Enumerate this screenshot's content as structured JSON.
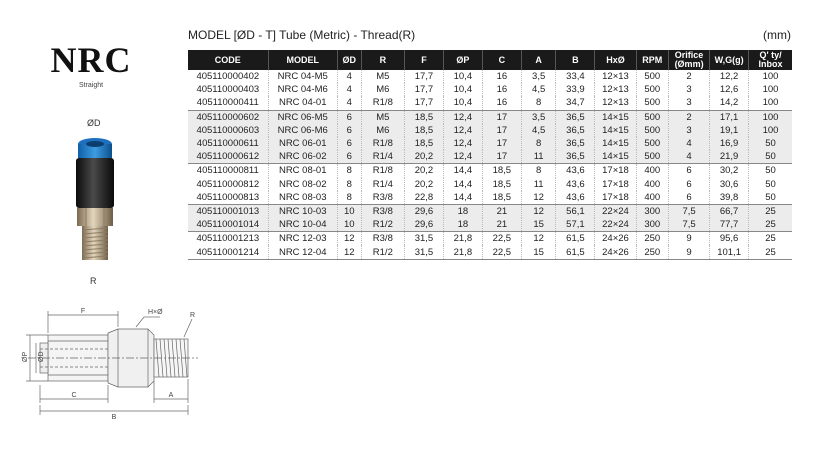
{
  "brand": {
    "name": "NRC",
    "subtitle": "Straight"
  },
  "photo_labels": {
    "top": "ØD",
    "bottom": "R"
  },
  "table": {
    "title": "MODEL [ØD - T]   Tube (Metric) - Thread(R)",
    "unit": "(mm)",
    "headers": [
      "CODE",
      "MODEL",
      "ØD",
      "R",
      "F",
      "ØP",
      "C",
      "A",
      "B",
      "HxØ",
      "RPM",
      "Orifice (Ømm)",
      "W,G(g)",
      "Q' ty/ Inbox"
    ],
    "groups": [
      {
        "shade": false,
        "rows": [
          [
            "405110000402",
            "NRC 04-M5",
            "4",
            "M5",
            "17,7",
            "10,4",
            "16",
            "3,5",
            "33,4",
            "12×13",
            "500",
            "2",
            "12,2",
            "100"
          ],
          [
            "405110000403",
            "NRC 04-M6",
            "4",
            "M6",
            "17,7",
            "10,4",
            "16",
            "4,5",
            "33,9",
            "12×13",
            "500",
            "3",
            "12,6",
            "100"
          ],
          [
            "405110000411",
            "NRC 04-01",
            "4",
            "R1/8",
            "17,7",
            "10,4",
            "16",
            "8",
            "34,7",
            "12×13",
            "500",
            "3",
            "14,2",
            "100"
          ]
        ]
      },
      {
        "shade": true,
        "rows": [
          [
            "405110000602",
            "NRC 06-M5",
            "6",
            "M5",
            "18,5",
            "12,4",
            "17",
            "3,5",
            "36,5",
            "14×15",
            "500",
            "2",
            "17,1",
            "100"
          ],
          [
            "405110000603",
            "NRC 06-M6",
            "6",
            "M6",
            "18,5",
            "12,4",
            "17",
            "4,5",
            "36,5",
            "14×15",
            "500",
            "3",
            "19,1",
            "100"
          ],
          [
            "405110000611",
            "NRC 06-01",
            "6",
            "R1/8",
            "18,5",
            "12,4",
            "17",
            "8",
            "36,5",
            "14×15",
            "500",
            "4",
            "16,9",
            "50"
          ],
          [
            "405110000612",
            "NRC 06-02",
            "6",
            "R1/4",
            "20,2",
            "12,4",
            "17",
            "11",
            "36,5",
            "14×15",
            "500",
            "4",
            "21,9",
            "50"
          ]
        ]
      },
      {
        "shade": false,
        "rows": [
          [
            "405110000811",
            "NRC 08-01",
            "8",
            "R1/8",
            "20,2",
            "14,4",
            "18,5",
            "8",
            "43,6",
            "17×18",
            "400",
            "6",
            "30,2",
            "50"
          ],
          [
            "405110000812",
            "NRC 08-02",
            "8",
            "R1/4",
            "20,2",
            "14,4",
            "18,5",
            "11",
            "43,6",
            "17×18",
            "400",
            "6",
            "30,6",
            "50"
          ],
          [
            "405110000813",
            "NRC 08-03",
            "8",
            "R3/8",
            "22,8",
            "14,4",
            "18,5",
            "12",
            "43,6",
            "17×18",
            "400",
            "6",
            "39,8",
            "50"
          ]
        ]
      },
      {
        "shade": true,
        "rows": [
          [
            "405110001013",
            "NRC 10-03",
            "10",
            "R3/8",
            "29,6",
            "18",
            "21",
            "12",
            "56,1",
            "22×24",
            "300",
            "7,5",
            "66,7",
            "25"
          ],
          [
            "405110001014",
            "NRC 10-04",
            "10",
            "R1/2",
            "29,6",
            "18",
            "21",
            "15",
            "57,1",
            "22×24",
            "300",
            "7,5",
            "77,7",
            "25"
          ]
        ]
      },
      {
        "shade": false,
        "rows": [
          [
            "405110001213",
            "NRC 12-03",
            "12",
            "R3/8",
            "31,5",
            "21,8",
            "22,5",
            "12",
            "61,5",
            "24×26",
            "250",
            "9",
            "95,6",
            "25"
          ],
          [
            "405110001214",
            "NRC 12-04",
            "12",
            "R1/2",
            "31,5",
            "21,8",
            "22,5",
            "15",
            "61,5",
            "24×26",
            "250",
            "9",
            "101,1",
            "25"
          ]
        ]
      }
    ]
  },
  "drawing_labels": {
    "F": "F",
    "HxO": "H×Ø",
    "R": "R",
    "OP": "ØP",
    "OD": "ØD",
    "C": "C",
    "A": "A",
    "B": "B"
  }
}
